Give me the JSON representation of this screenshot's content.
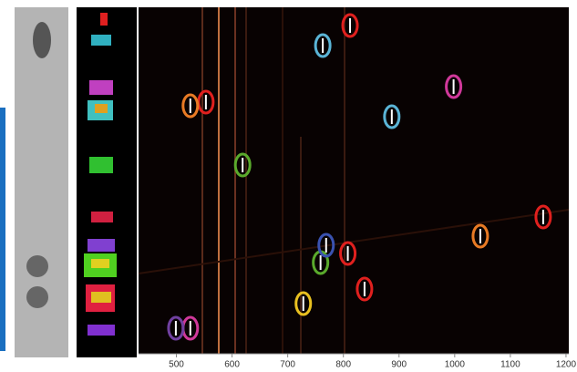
{
  "chart_data": {
    "type": "scatter",
    "xlim": [
      432,
      1205
    ],
    "xticks": [
      500,
      600,
      700,
      800,
      900,
      1000,
      1100,
      1200
    ],
    "series": [
      {
        "color": "#e0201e",
        "x": [
          812,
          553,
          1159,
          808,
          838
        ]
      },
      {
        "color": "#5ab4d6",
        "x": [
          763,
          887
        ]
      },
      {
        "color": "#d0389a",
        "x": [
          998,
          525
        ]
      },
      {
        "color": "#e87a24",
        "x": [
          525,
          1046
        ]
      },
      {
        "color": "#5aaa2c",
        "x": [
          619,
          759
        ]
      },
      {
        "color": "#3a52b0",
        "x": [
          769
        ]
      },
      {
        "color": "#e8c020",
        "x": [
          728
        ]
      },
      {
        "color": "#7040a0",
        "x": [
          499
        ]
      }
    ]
  }
}
